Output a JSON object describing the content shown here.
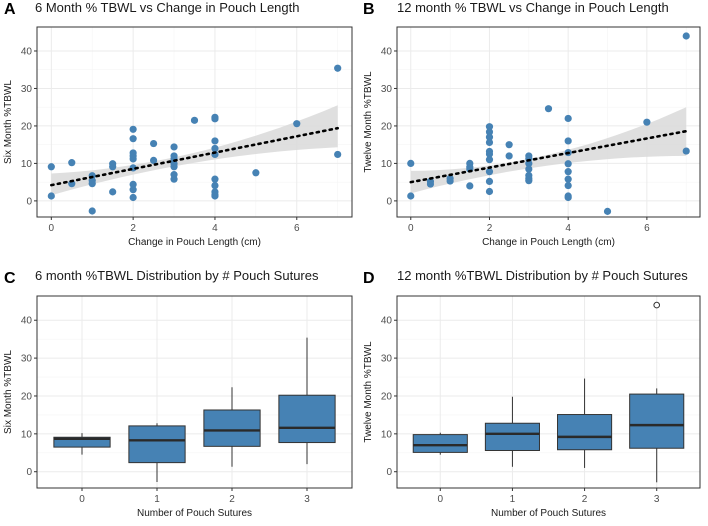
{
  "colors": {
    "point": "#4682B4",
    "box": "#4682B4",
    "band": "#D9D9D9",
    "trend": "#000000",
    "grid_major": "#EBEBEB",
    "grid_minor": "#F5F5F5",
    "border": "#333333"
  },
  "panel_labels": [
    "A",
    "B",
    "C",
    "D"
  ],
  "chart_data": [
    {
      "type": "scatter",
      "panel": "A",
      "title": "6 Month % TBWL vs Change in Pouch Length",
      "xlabel": "Change in Pouch Length (cm)",
      "ylabel": "Six Month %TBWL",
      "xlim": [
        -0.35,
        7.35
      ],
      "ylim": [
        -4.3,
        46.4
      ],
      "xticks": [
        0,
        2,
        4,
        6
      ],
      "yticks": [
        0,
        10,
        20,
        30,
        40
      ],
      "grid": true,
      "points": [
        {
          "x": 0,
          "y": 9.1
        },
        {
          "x": 0,
          "y": 1.3
        },
        {
          "x": 0.5,
          "y": 10.2
        },
        {
          "x": 0.5,
          "y": 4.6
        },
        {
          "x": 1,
          "y": 6.7
        },
        {
          "x": 1,
          "y": 5.4
        },
        {
          "x": 1,
          "y": 4.6
        },
        {
          "x": 1,
          "y": -2.7
        },
        {
          "x": 1.5,
          "y": 9.9
        },
        {
          "x": 1.5,
          "y": 9.1
        },
        {
          "x": 1.5,
          "y": 2.4
        },
        {
          "x": 2,
          "y": 19.1
        },
        {
          "x": 2,
          "y": 16.6
        },
        {
          "x": 2,
          "y": 12.8
        },
        {
          "x": 2,
          "y": 12.0
        },
        {
          "x": 2,
          "y": 11.2
        },
        {
          "x": 2,
          "y": 8.8
        },
        {
          "x": 2,
          "y": 4.4
        },
        {
          "x": 2,
          "y": 3.0
        },
        {
          "x": 2,
          "y": 0.9
        },
        {
          "x": 2.5,
          "y": 15.3
        },
        {
          "x": 2.5,
          "y": 10.8
        },
        {
          "x": 3,
          "y": 14.4
        },
        {
          "x": 3,
          "y": 12.0
        },
        {
          "x": 3,
          "y": 11.2
        },
        {
          "x": 3,
          "y": 9.9
        },
        {
          "x": 3,
          "y": 9.1
        },
        {
          "x": 3,
          "y": 7.0
        },
        {
          "x": 3,
          "y": 5.8
        },
        {
          "x": 3.5,
          "y": 21.5
        },
        {
          "x": 4,
          "y": 22.3
        },
        {
          "x": 4,
          "y": 21.9
        },
        {
          "x": 4,
          "y": 16.0
        },
        {
          "x": 4,
          "y": 14.0
        },
        {
          "x": 4,
          "y": 12.4
        },
        {
          "x": 4,
          "y": 5.8
        },
        {
          "x": 4,
          "y": 4.1
        },
        {
          "x": 4,
          "y": 2.4
        },
        {
          "x": 4,
          "y": 1.6
        },
        {
          "x": 4,
          "y": 1.3
        },
        {
          "x": 5,
          "y": 7.5
        },
        {
          "x": 6,
          "y": 20.6
        },
        {
          "x": 7,
          "y": 35.4
        },
        {
          "x": 7,
          "y": 12.4
        }
      ],
      "trend": {
        "style": "dotted",
        "from": {
          "x": 0,
          "y": 4.2
        },
        "to": {
          "x": 7,
          "y": 19.4
        }
      },
      "ci_band": {
        "lower_start": 1.5,
        "upper_start": 7.3,
        "lower_mid": 10.0,
        "upper_mid": 12.6,
        "x_mid": 3.4,
        "lower_end": 14.3,
        "upper_end": 25.5
      }
    },
    {
      "type": "scatter",
      "panel": "B",
      "title": "12 month % TBWL vs Change in Pouch Length",
      "xlabel": "Change in Pouch Length (cm)",
      "ylabel": "Twelve Month %TBWL",
      "xlim": [
        -0.35,
        7.35
      ],
      "ylim": [
        -4.3,
        46.4
      ],
      "xticks": [
        0,
        2,
        4,
        6
      ],
      "yticks": [
        0,
        10,
        20,
        30,
        40
      ],
      "grid": true,
      "points": [
        {
          "x": 0,
          "y": 10.0
        },
        {
          "x": 0,
          "y": 1.3
        },
        {
          "x": 0.5,
          "y": 5.2
        },
        {
          "x": 0.5,
          "y": 4.5
        },
        {
          "x": 1,
          "y": 6.0
        },
        {
          "x": 1,
          "y": 5.3
        },
        {
          "x": 1.5,
          "y": 10.0
        },
        {
          "x": 1.5,
          "y": 9.0
        },
        {
          "x": 1.5,
          "y": 8.5
        },
        {
          "x": 1.5,
          "y": 4.0
        },
        {
          "x": 2,
          "y": 19.8
        },
        {
          "x": 2,
          "y": 18.4
        },
        {
          "x": 2,
          "y": 17.0
        },
        {
          "x": 2,
          "y": 15.6
        },
        {
          "x": 2,
          "y": 13.2
        },
        {
          "x": 2,
          "y": 12.5
        },
        {
          "x": 2,
          "y": 11.0
        },
        {
          "x": 2,
          "y": 7.8
        },
        {
          "x": 2,
          "y": 5.2
        },
        {
          "x": 2,
          "y": 2.5
        },
        {
          "x": 2.5,
          "y": 15.0
        },
        {
          "x": 2.5,
          "y": 12.0
        },
        {
          "x": 3,
          "y": 12.0
        },
        {
          "x": 3,
          "y": 11.3
        },
        {
          "x": 3,
          "y": 10.0
        },
        {
          "x": 3,
          "y": 8.5
        },
        {
          "x": 3,
          "y": 6.8
        },
        {
          "x": 3,
          "y": 6.0
        },
        {
          "x": 3,
          "y": 5.4
        },
        {
          "x": 3.5,
          "y": 24.6
        },
        {
          "x": 4,
          "y": 22.0
        },
        {
          "x": 4,
          "y": 16.0
        },
        {
          "x": 4,
          "y": 12.9
        },
        {
          "x": 4,
          "y": 9.9
        },
        {
          "x": 4,
          "y": 7.8
        },
        {
          "x": 4,
          "y": 5.8
        },
        {
          "x": 4,
          "y": 4.1
        },
        {
          "x": 4,
          "y": 1.3
        },
        {
          "x": 4,
          "y": 0.9
        },
        {
          "x": 5,
          "y": -2.8
        },
        {
          "x": 6,
          "y": 21.0
        },
        {
          "x": 7,
          "y": 44.0
        },
        {
          "x": 7,
          "y": 13.3
        }
      ],
      "trend": {
        "style": "dotted",
        "from": {
          "x": 0,
          "y": 5.0
        },
        "to": {
          "x": 7,
          "y": 18.6
        }
      },
      "ci_band": {
        "lower_start": 2.0,
        "upper_start": 8.0,
        "lower_mid": 9.3,
        "upper_mid": 12.1,
        "x_mid": 3.4,
        "lower_end": 12.0,
        "upper_end": 25.0
      }
    },
    {
      "type": "box",
      "panel": "C",
      "title": "6 month %TBWL Distribution by # Pouch Sutures",
      "xlabel": "Number of Pouch Sutures",
      "ylabel": "Six Month %TBWL",
      "categories": [
        "0",
        "1",
        "2",
        "3"
      ],
      "ylim": [
        -4.3,
        46.4
      ],
      "yticks": [
        0,
        10,
        20,
        30,
        40
      ],
      "grid": true,
      "boxes": [
        {
          "category": "0",
          "whisker_low": 4.5,
          "q1": 6.5,
          "median": 8.7,
          "q3": 9.1,
          "whisker_high": 10.2,
          "outliers": []
        },
        {
          "category": "1",
          "whisker_low": -2.7,
          "q1": 2.4,
          "median": 8.3,
          "q3": 12.1,
          "whisker_high": 12.8,
          "outliers": []
        },
        {
          "category": "2",
          "whisker_low": 1.3,
          "q1": 6.7,
          "median": 10.9,
          "q3": 16.3,
          "whisker_high": 22.3,
          "outliers": []
        },
        {
          "category": "3",
          "whisker_low": 2.0,
          "q1": 7.7,
          "median": 11.6,
          "q3": 20.2,
          "whisker_high": 35.4,
          "outliers": []
        }
      ]
    },
    {
      "type": "box",
      "panel": "D",
      "title": "12 month %TBWL Distribution by # Pouch Sutures",
      "xlabel": "Number of Pouch Sutures",
      "ylabel": "Twelve Month %TBWL",
      "categories": [
        "0",
        "1",
        "2",
        "3"
      ],
      "ylim": [
        -4.3,
        46.4
      ],
      "yticks": [
        0,
        10,
        20,
        30,
        40
      ],
      "grid": true,
      "boxes": [
        {
          "category": "0",
          "whisker_low": 4.5,
          "q1": 5.1,
          "median": 7.0,
          "q3": 9.8,
          "whisker_high": 10.3,
          "outliers": []
        },
        {
          "category": "1",
          "whisker_low": 1.3,
          "q1": 5.6,
          "median": 10.0,
          "q3": 12.8,
          "whisker_high": 19.8,
          "outliers": []
        },
        {
          "category": "2",
          "whisker_low": 1.0,
          "q1": 5.8,
          "median": 9.2,
          "q3": 15.1,
          "whisker_high": 24.6,
          "outliers": []
        },
        {
          "category": "3",
          "whisker_low": -2.8,
          "q1": 6.2,
          "median": 12.3,
          "q3": 20.5,
          "whisker_high": 22.0,
          "outliers": [
            44.0
          ]
        }
      ]
    }
  ]
}
